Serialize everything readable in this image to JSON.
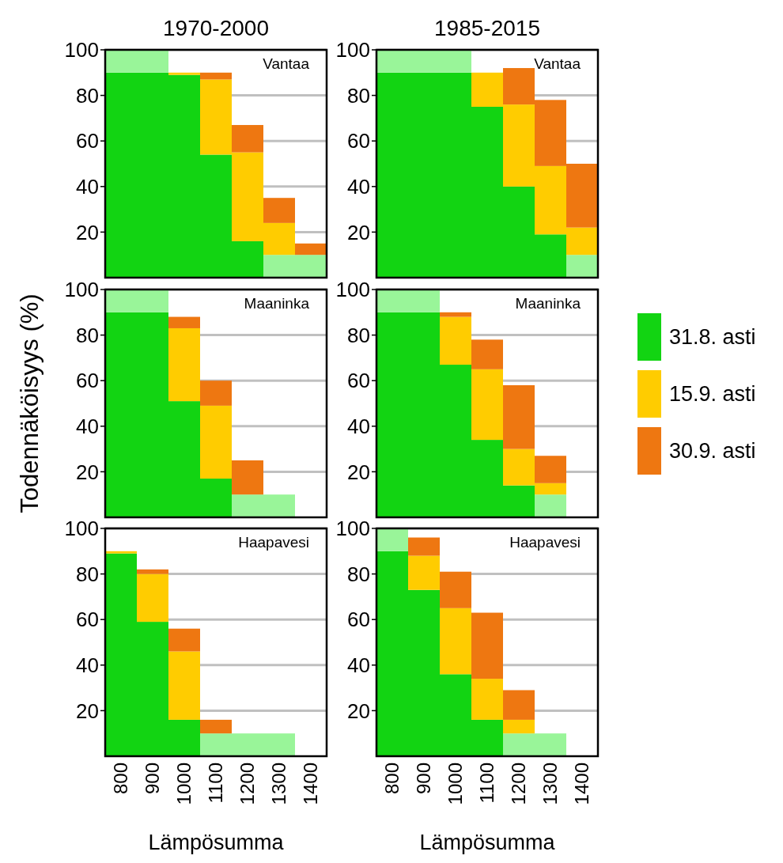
{
  "chart_data": [
    {
      "type": "bar",
      "stacked": true,
      "title": "1970-2000",
      "annotations": [
        "Vantaa"
      ],
      "categories": [
        "800",
        "900",
        "1000",
        "1100",
        "1200",
        "1300",
        "1400"
      ],
      "ylim": [
        0,
        100
      ],
      "yticks": [
        20,
        40,
        60,
        80,
        100
      ],
      "grid": "y",
      "tick_labels": "y",
      "series": [
        {
          "color": "#12d412",
          "values": [
            90,
            90,
            89,
            54,
            16,
            0,
            0
          ]
        },
        {
          "color": "#99f599",
          "values": [
            10,
            10,
            0,
            0,
            0,
            10,
            10
          ]
        },
        {
          "color": "#ffcc00",
          "values": [
            0,
            0,
            1,
            33,
            39,
            14,
            0
          ]
        },
        {
          "color": "#ee7711",
          "values": [
            0,
            0,
            0,
            3,
            12,
            11,
            5
          ]
        }
      ]
    },
    {
      "type": "bar",
      "stacked": true,
      "title": "1985-2015",
      "annotations": [
        "Vantaa"
      ],
      "categories": [
        "800",
        "900",
        "1000",
        "1100",
        "1200",
        "1300",
        "1400"
      ],
      "ylim": [
        0,
        100
      ],
      "yticks": [
        20,
        40,
        60,
        80,
        100
      ],
      "grid": "y",
      "tick_labels": "y",
      "series": [
        {
          "color": "#12d412",
          "values": [
            90,
            90,
            90,
            75,
            40,
            19,
            0
          ]
        },
        {
          "color": "#99f599",
          "values": [
            10,
            10,
            10,
            0,
            0,
            0,
            10
          ]
        },
        {
          "color": "#ffcc00",
          "values": [
            0,
            0,
            0,
            15,
            36,
            30,
            12
          ]
        },
        {
          "color": "#ee7711",
          "values": [
            0,
            0,
            0,
            0,
            16,
            29,
            28
          ]
        }
      ]
    },
    {
      "type": "bar",
      "stacked": true,
      "ylabel": "Todennäköisyys (%)",
      "annotations": [
        "Maaninka"
      ],
      "categories": [
        "800",
        "900",
        "1000",
        "1100",
        "1200",
        "1300",
        "1400"
      ],
      "ylim": [
        0,
        100
      ],
      "yticks": [
        20,
        40,
        60,
        80,
        100
      ],
      "grid": "y",
      "tick_labels": "y",
      "series": [
        {
          "color": "#12d412",
          "values": [
            90,
            90,
            51,
            17,
            0,
            0,
            0
          ]
        },
        {
          "color": "#99f599",
          "values": [
            10,
            10,
            0,
            0,
            10,
            10,
            0
          ]
        },
        {
          "color": "#ffcc00",
          "values": [
            0,
            0,
            32,
            32,
            0,
            0,
            0
          ]
        },
        {
          "color": "#ee7711",
          "values": [
            0,
            0,
            5,
            11,
            15,
            0,
            0
          ]
        }
      ]
    },
    {
      "type": "bar",
      "stacked": true,
      "legend": "right",
      "annotations": [
        "Maaninka"
      ],
      "categories": [
        "800",
        "900",
        "1000",
        "1100",
        "1200",
        "1300",
        "1400"
      ],
      "ylim": [
        0,
        100
      ],
      "yticks": [
        20,
        40,
        60,
        80,
        100
      ],
      "grid": "y",
      "tick_labels": "y",
      "series": [
        {
          "name": "31.8. asti",
          "color": "#12d412",
          "values": [
            90,
            90,
            67,
            34,
            14,
            0,
            0
          ]
        },
        {
          "color": "#99f599",
          "values": [
            10,
            10,
            0,
            0,
            0,
            10,
            0
          ]
        },
        {
          "name": "15.9. asti",
          "color": "#ffcc00",
          "values": [
            0,
            0,
            21,
            31,
            16,
            5,
            0
          ]
        },
        {
          "name": "30.9. asti",
          "color": "#ee7711",
          "values": [
            0,
            0,
            2,
            13,
            28,
            12,
            0
          ]
        }
      ]
    },
    {
      "type": "bar",
      "stacked": true,
      "xlabel": "Lämpösumma",
      "annotations": [
        "Haapavesi"
      ],
      "categories": [
        "800",
        "900",
        "1000",
        "1100",
        "1200",
        "1300",
        "1400"
      ],
      "ylim": [
        0,
        100
      ],
      "yticks": [
        20,
        40,
        60,
        80,
        100
      ],
      "grid": "y",
      "series": [
        {
          "color": "#12d412",
          "values": [
            89,
            59,
            16,
            0,
            0,
            0,
            0
          ]
        },
        {
          "color": "#99f599",
          "values": [
            0,
            0,
            0,
            10,
            10,
            10,
            0
          ]
        },
        {
          "color": "#ffcc00",
          "values": [
            1,
            21,
            30,
            0,
            0,
            0,
            0
          ]
        },
        {
          "color": "#ee7711",
          "values": [
            0,
            2,
            10,
            6,
            0,
            0,
            0
          ]
        }
      ]
    },
    {
      "type": "bar",
      "stacked": true,
      "xlabel": "Lämpösumma",
      "annotations": [
        "Haapavesi"
      ],
      "categories": [
        "800",
        "900",
        "1000",
        "1100",
        "1200",
        "1300",
        "1400"
      ],
      "ylim": [
        0,
        100
      ],
      "yticks": [
        20,
        40,
        60,
        80,
        100
      ],
      "grid": "y",
      "series": [
        {
          "color": "#12d412",
          "values": [
            90,
            73,
            36,
            16,
            0,
            0,
            0
          ]
        },
        {
          "color": "#99f599",
          "values": [
            10,
            0,
            0,
            0,
            10,
            10,
            0
          ]
        },
        {
          "color": "#ffcc00",
          "values": [
            0,
            15,
            29,
            18,
            6,
            0,
            0
          ]
        },
        {
          "color": "#ee7711",
          "values": [
            0,
            8,
            16,
            29,
            13,
            0,
            0
          ]
        }
      ]
    }
  ]
}
